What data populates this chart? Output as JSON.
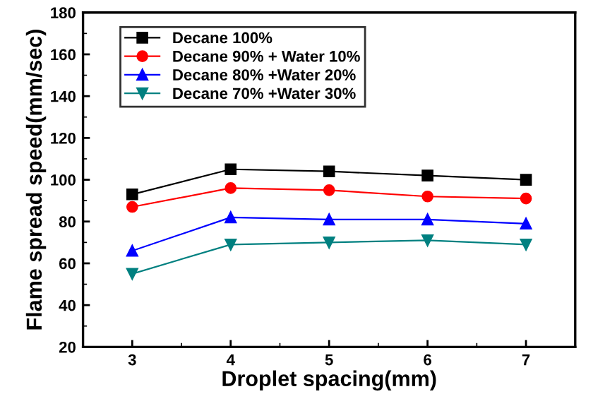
{
  "chart_data": {
    "type": "line",
    "xlabel": "Droplet spacing(mm)",
    "ylabel": "Flame spread speed(mm/sec)",
    "x": [
      3,
      4,
      5,
      6,
      7
    ],
    "series": [
      {
        "name": "Decane 100%",
        "color": "#000000",
        "marker": "square",
        "values": [
          93,
          105,
          104,
          102,
          100
        ]
      },
      {
        "name": "Decane 90% + Water 10%",
        "color": "#ff0000",
        "marker": "circle",
        "values": [
          87,
          96,
          95,
          92,
          91
        ]
      },
      {
        "name": "Decane 80% +Water 20%",
        "color": "#0000ff",
        "marker": "triangle",
        "values": [
          66,
          82,
          81,
          81,
          79
        ]
      },
      {
        "name": "Decane 70% +Water 30%",
        "color": "#008080",
        "marker": "triangle_down",
        "values": [
          55,
          69,
          70,
          71,
          69
        ]
      }
    ],
    "xlim": [
      2.5,
      7.5
    ],
    "xticks": [
      3,
      4,
      5,
      6,
      7
    ],
    "ylim": [
      20,
      180
    ],
    "yticks": [
      20,
      40,
      60,
      80,
      100,
      120,
      140,
      160,
      180
    ],
    "grid": false,
    "legend": "top left",
    "line_style": "solid"
  }
}
